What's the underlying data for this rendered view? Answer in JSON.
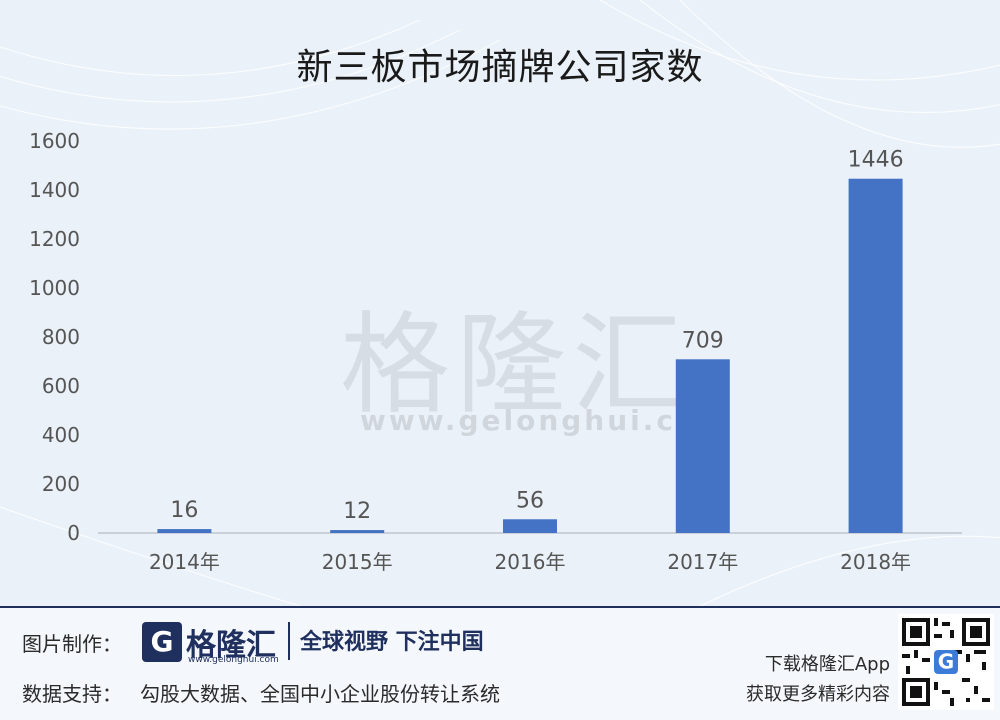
{
  "chart_data": {
    "type": "bar",
    "title": "新三板市场摘牌公司家数",
    "categories": [
      "2014年",
      "2015年",
      "2016年",
      "2017年",
      "2018年"
    ],
    "values": [
      16,
      12,
      56,
      709,
      1446
    ],
    "data_labels": [
      "16",
      "12",
      "56",
      "709",
      "1446"
    ],
    "ylim": [
      0,
      1600
    ],
    "yticks": [
      "0",
      "200",
      "400",
      "600",
      "800",
      "1000",
      "1200",
      "1400",
      "1600"
    ],
    "xlabel": "",
    "ylabel": "",
    "grid": false,
    "bar_color": "#4472c4"
  },
  "watermark": {
    "text": "格隆汇",
    "url": "www.gelonghui.com"
  },
  "footer": {
    "made_by_label": "图片制作：",
    "logo_letter": "G",
    "logo_text": "格隆汇",
    "logo_url": "www.gelonghui.com",
    "slogan": "全球视野 下注中国",
    "data_support_label": "数据支持：",
    "data_support_value": "勾股大数据、全国中小企业股份转让系统",
    "app_line1": "下载格隆汇App",
    "app_line2": "获取更多精彩内容"
  },
  "colors": {
    "brand_navy": "#1f2f5e",
    "bar": "#4472c4",
    "background": "#eaf1f8"
  }
}
